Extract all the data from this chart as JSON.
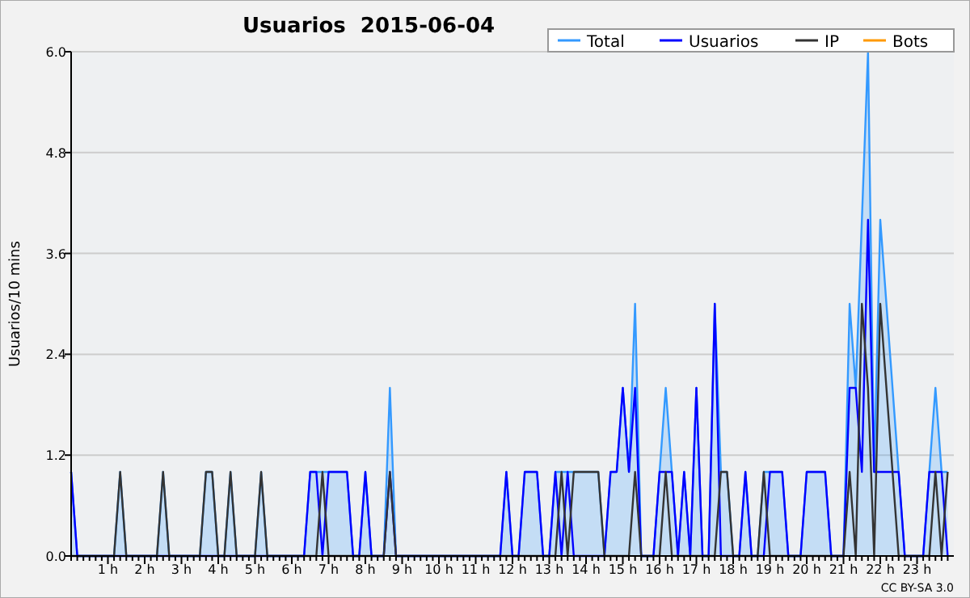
{
  "chart_data": {
    "type": "line",
    "title": "Usuarios  2015-06-04",
    "ylabel": "Usuarios/10 mins",
    "annotations": [
      "CC BY-SA 3.0"
    ],
    "categories": [
      null,
      null,
      null,
      null,
      null,
      null,
      "1 h",
      null,
      null,
      null,
      null,
      null,
      "2 h",
      null,
      null,
      null,
      null,
      null,
      "3 h",
      null,
      null,
      null,
      null,
      null,
      "4 h",
      null,
      null,
      null,
      null,
      null,
      "5 h",
      null,
      null,
      null,
      null,
      null,
      "6 h",
      null,
      null,
      null,
      null,
      null,
      "7 h",
      null,
      null,
      null,
      null,
      null,
      "8 h",
      null,
      null,
      null,
      null,
      null,
      "9 h",
      null,
      null,
      null,
      null,
      null,
      "10 h",
      null,
      null,
      null,
      null,
      null,
      "11 h",
      null,
      null,
      null,
      null,
      null,
      "12 h",
      null,
      null,
      null,
      null,
      null,
      "13 h",
      null,
      null,
      null,
      null,
      null,
      "14 h",
      null,
      null,
      null,
      null,
      null,
      "15 h",
      null,
      null,
      null,
      null,
      null,
      "16 h",
      null,
      null,
      null,
      null,
      null,
      "17 h",
      null,
      null,
      null,
      null,
      null,
      "18 h",
      null,
      null,
      null,
      null,
      null,
      "19 h",
      null,
      null,
      null,
      null,
      null,
      "20 h",
      null,
      null,
      null,
      null,
      null,
      "21 h",
      null,
      null,
      null,
      null,
      null,
      "22 h",
      null,
      null,
      null,
      null,
      null,
      "23 h",
      null,
      null,
      null,
      null,
      null
    ],
    "ylim": [
      0,
      6
    ],
    "yticks": [
      {
        "value": 0,
        "label": "0.0"
      },
      {
        "value": 1.2,
        "label": "1.2"
      },
      {
        "value": 2.4,
        "label": "2.4"
      },
      {
        "value": 3.6,
        "label": "3.6"
      },
      {
        "value": 4.8,
        "label": "4.8"
      },
      {
        "value": 6,
        "label": "6.0"
      }
    ],
    "grid": "y",
    "legend": "top right",
    "marker": "none",
    "line_style": "solid",
    "series": [
      {
        "name": "Total",
        "type": "area",
        "color": "#3399ff",
        "values": [
          1,
          0,
          0,
          0,
          0,
          0,
          0,
          0,
          1,
          0,
          0,
          0,
          0,
          0,
          0,
          1,
          0,
          0,
          0,
          0,
          0,
          0,
          1,
          1,
          0,
          0,
          1,
          0,
          0,
          0,
          0,
          1,
          0,
          0,
          0,
          0,
          0,
          0,
          0,
          1,
          1,
          1,
          1,
          1,
          1,
          1,
          0,
          0,
          1,
          0,
          0,
          0,
          2,
          0,
          0,
          0,
          0,
          0,
          0,
          0,
          0,
          0,
          0,
          0,
          0,
          0,
          0,
          0,
          0,
          0,
          0,
          1,
          0,
          0,
          1,
          1,
          1,
          0,
          0,
          1,
          1,
          1,
          1,
          1,
          1,
          1,
          1,
          0,
          1,
          1,
          2,
          1,
          3,
          0,
          0,
          0,
          1,
          2,
          1,
          0,
          1,
          0,
          2,
          0,
          0,
          3,
          1,
          1,
          0,
          0,
          1,
          0,
          0,
          1,
          1,
          1,
          1,
          0,
          0,
          0,
          1,
          1,
          1,
          1,
          0,
          0,
          0,
          3,
          2,
          4,
          6,
          1,
          4,
          3,
          2,
          1,
          0,
          0,
          0,
          0,
          1,
          2,
          1,
          1
        ]
      },
      {
        "name": "Usuarios",
        "type": "line",
        "color": "#0000ff",
        "values": [
          1,
          0,
          0,
          0,
          0,
          0,
          0,
          0,
          0,
          0,
          0,
          0,
          0,
          0,
          0,
          0,
          0,
          0,
          0,
          0,
          0,
          0,
          0,
          0,
          0,
          0,
          0,
          0,
          0,
          0,
          0,
          0,
          0,
          0,
          0,
          0,
          0,
          0,
          0,
          1,
          1,
          0,
          1,
          1,
          1,
          1,
          0,
          0,
          1,
          0,
          0,
          0,
          1,
          0,
          0,
          0,
          0,
          0,
          0,
          0,
          0,
          0,
          0,
          0,
          0,
          0,
          0,
          0,
          0,
          0,
          0,
          1,
          0,
          0,
          1,
          1,
          1,
          0,
          0,
          1,
          0,
          1,
          0,
          0,
          0,
          0,
          0,
          0,
          1,
          1,
          2,
          1,
          2,
          0,
          0,
          0,
          1,
          1,
          1,
          0,
          1,
          0,
          2,
          0,
          0,
          3,
          0,
          0,
          0,
          0,
          1,
          0,
          0,
          0,
          1,
          1,
          1,
          0,
          0,
          0,
          1,
          1,
          1,
          1,
          0,
          0,
          0,
          2,
          2,
          1,
          4,
          1,
          1,
          1,
          1,
          1,
          0,
          0,
          0,
          0,
          1,
          1,
          1,
          0
        ]
      },
      {
        "name": "IP",
        "type": "line",
        "color": "#333333",
        "values": [
          0,
          0,
          0,
          0,
          0,
          0,
          0,
          0,
          1,
          0,
          0,
          0,
          0,
          0,
          0,
          1,
          0,
          0,
          0,
          0,
          0,
          0,
          1,
          1,
          0,
          0,
          1,
          0,
          0,
          0,
          0,
          1,
          0,
          0,
          0,
          0,
          0,
          0,
          0,
          0,
          0,
          1,
          0,
          0,
          0,
          0,
          0,
          0,
          0,
          0,
          0,
          0,
          1,
          0,
          0,
          0,
          0,
          0,
          0,
          0,
          0,
          0,
          0,
          0,
          0,
          0,
          0,
          0,
          0,
          0,
          0,
          0,
          0,
          0,
          0,
          0,
          0,
          0,
          0,
          0,
          1,
          0,
          1,
          1,
          1,
          1,
          1,
          0,
          0,
          0,
          0,
          0,
          1,
          0,
          0,
          0,
          0,
          1,
          0,
          0,
          0,
          0,
          0,
          0,
          0,
          0,
          1,
          1,
          0,
          0,
          0,
          0,
          0,
          1,
          0,
          0,
          0,
          0,
          0,
          0,
          0,
          0,
          0,
          0,
          0,
          0,
          0,
          1,
          0,
          3,
          2,
          0,
          3,
          2,
          1,
          0,
          0,
          0,
          0,
          0,
          0,
          1,
          0,
          1
        ]
      },
      {
        "name": "Bots",
        "type": "line",
        "color": "#ff9900",
        "values": [
          null,
          null,
          null,
          null,
          null,
          null,
          null,
          null,
          null,
          null,
          null,
          null,
          null,
          null,
          null,
          null,
          null,
          null,
          null,
          null,
          null,
          null,
          null,
          null,
          null,
          null,
          null,
          null,
          null,
          null,
          null,
          null,
          null,
          null,
          null,
          null,
          null,
          null,
          null,
          null,
          null,
          null,
          null,
          null,
          null,
          null,
          null,
          null,
          null,
          null,
          null,
          null,
          null,
          null,
          null,
          null,
          null,
          null,
          null,
          null,
          null,
          null,
          null,
          null,
          null,
          null,
          null,
          null,
          null,
          null,
          null,
          null,
          null,
          null,
          null,
          null,
          null,
          null,
          null,
          null,
          null,
          null,
          null,
          null,
          null,
          null,
          null,
          null,
          null,
          null,
          null,
          null,
          null,
          null,
          null,
          null,
          null,
          null,
          null,
          null,
          null,
          null,
          null,
          null,
          null,
          null,
          null,
          null,
          null,
          null,
          null,
          null,
          null,
          null,
          null,
          null,
          null,
          null,
          null,
          null,
          null,
          null,
          null,
          null,
          null,
          null,
          null,
          null,
          null,
          null,
          null,
          null,
          null,
          null,
          null,
          null,
          null,
          null,
          null,
          null,
          null,
          null,
          null,
          null
        ]
      }
    ]
  }
}
